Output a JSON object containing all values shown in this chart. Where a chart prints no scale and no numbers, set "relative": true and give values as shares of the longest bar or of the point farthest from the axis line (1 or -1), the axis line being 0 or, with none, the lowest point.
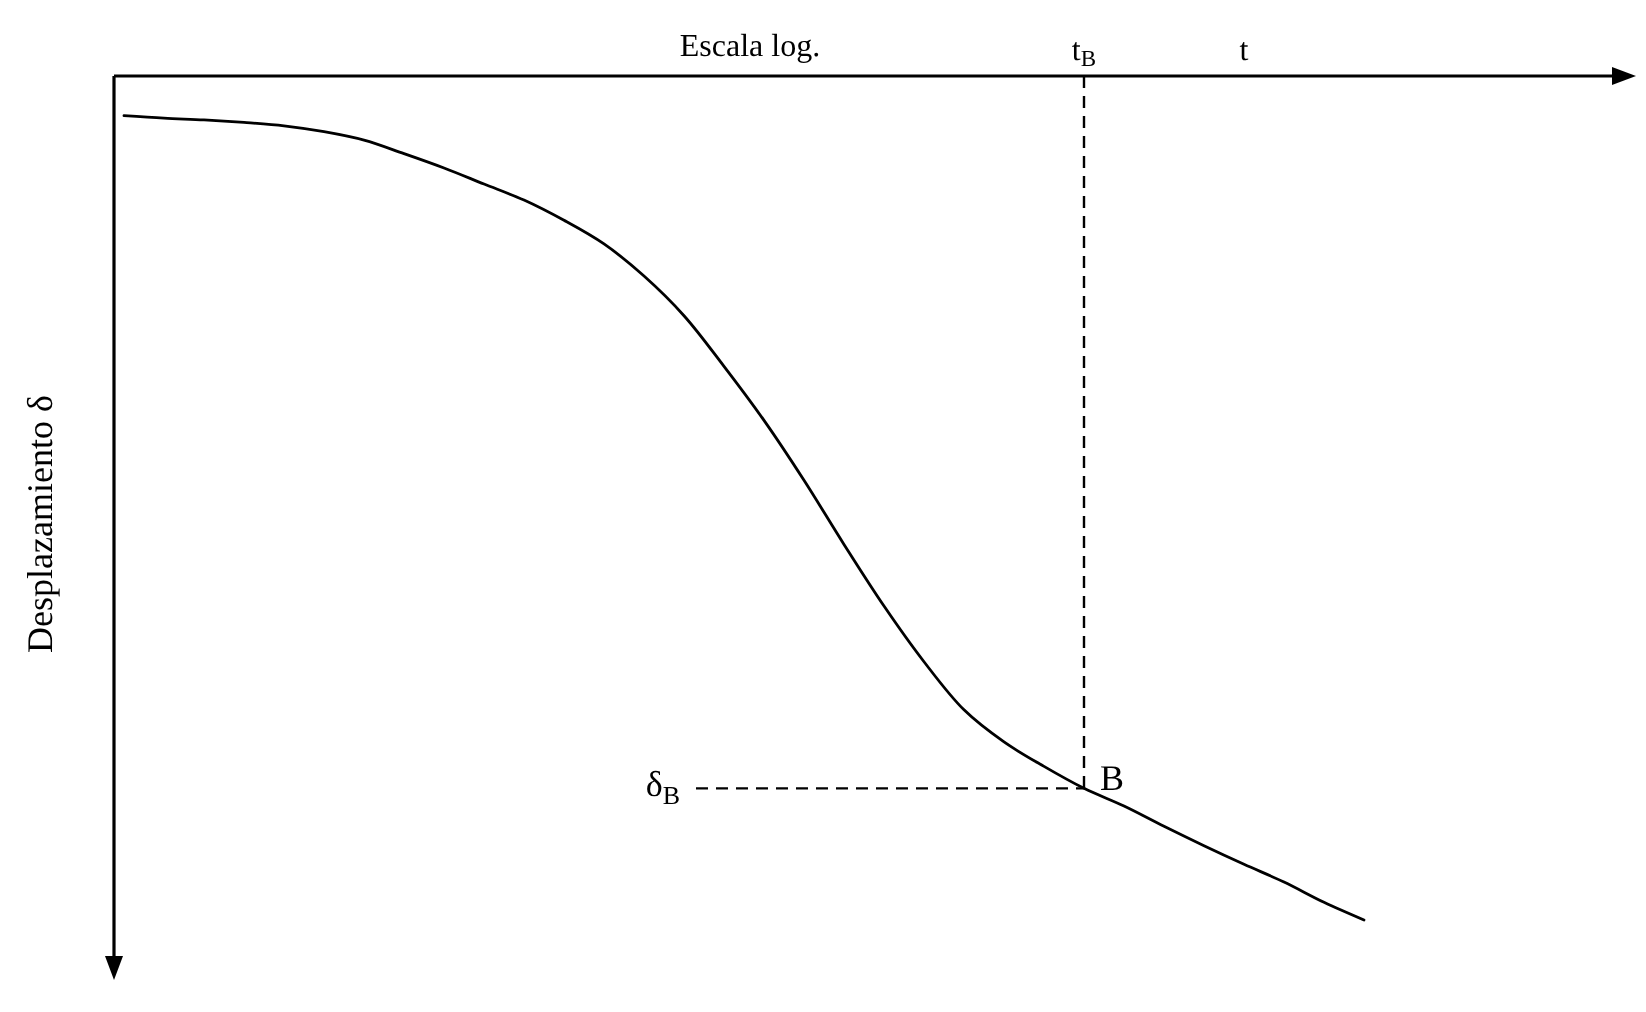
{
  "chart_data": {
    "type": "line",
    "relative": true,
    "xlabel": "Escala log.",
    "ylabel": "Desplazamiento δ",
    "tick_labels": "x",
    "color": "#000000",
    "categories": [
      null,
      null,
      null,
      null,
      null,
      null,
      null,
      null,
      null,
      null,
      null,
      null,
      null,
      null,
      null,
      null,
      null,
      null,
      null,
      null,
      null,
      null,
      null,
      null,
      "t$_{B}$",
      null,
      null,
      null,
      "t",
      null,
      null,
      null
    ],
    "values": [
      -0.047,
      -0.05,
      -0.052,
      -0.055,
      -0.059,
      -0.066,
      -0.076,
      -0.092,
      -0.109,
      -0.128,
      -0.147,
      -0.171,
      -0.199,
      -0.237,
      -0.284,
      -0.344,
      -0.408,
      -0.479,
      -0.555,
      -0.628,
      -0.694,
      -0.751,
      -0.789,
      -0.818,
      -0.844,
      -0.865,
      -0.889,
      -0.912,
      -0.934,
      -0.955,
      -0.979,
      -1
    ],
    "ref_lines": [
      {
        "axis": "x",
        "value": "t$_{B}$",
        "label": null,
        "line_style": "dashed"
      },
      {
        "axis": "y",
        "value": -0.844,
        "label": "δ$_{B}$",
        "line_style": "dashed"
      }
    ],
    "annotations": [
      {
        "text": "B",
        "x": "t$_{B}$",
        "y": -0.844
      }
    ]
  }
}
